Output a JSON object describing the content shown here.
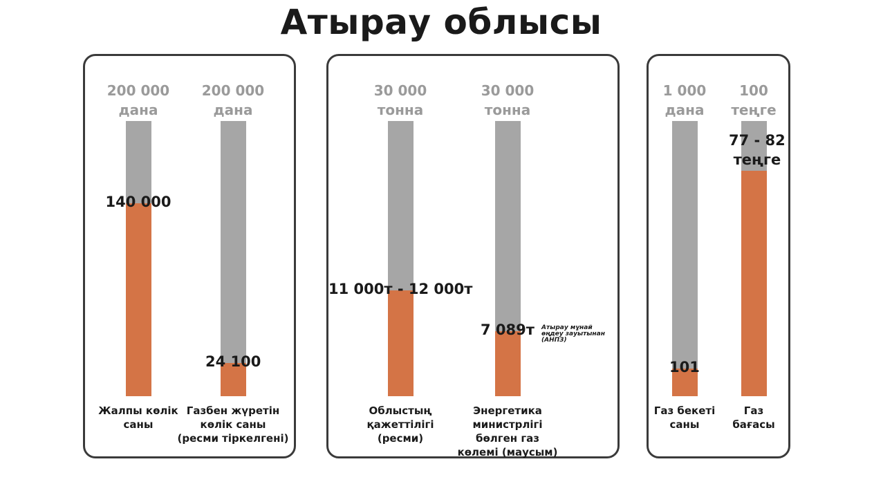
{
  "title": "Атырау облысы",
  "colors": {
    "filled": "#d47446",
    "track": "#a6a6a6",
    "max_text": "#9a9a9a"
  },
  "chart_data": [
    {
      "type": "bar",
      "series": [
        {
          "name": "Жалпы көлік саны",
          "max_top": "200 000",
          "max_unit": "дана",
          "max_value": 200000,
          "value": 140000,
          "value_label": "140 000"
        },
        {
          "name": "Газбен жүретін көлік саны (ресми тіркелгені)",
          "max_top": "200 000",
          "max_unit": "дана",
          "max_value": 200000,
          "value": 24100,
          "value_label": "24 100"
        }
      ]
    },
    {
      "type": "bar",
      "series": [
        {
          "name": "Облыстың қажеттілігі (ресми)",
          "max_top": "30 000",
          "max_unit": "тонна",
          "max_value": 30000,
          "value": 11500,
          "value_label": "11 000т - 12 000т"
        },
        {
          "name": "Энергетика министрлігі бөлген газ көлемі (маусым)",
          "max_top": "30 000",
          "max_unit": "тонна",
          "max_value": 30000,
          "value": 7089,
          "value_label": "7 089т",
          "note": "Атырау мұнай өңдеу зауытынан (АНПЗ)"
        }
      ]
    },
    {
      "type": "bar",
      "series": [
        {
          "name": "Газ бекеті саны",
          "max_top": "1 000",
          "max_unit": "дана",
          "max_value": 1000,
          "value": 101,
          "value_label": "101"
        },
        {
          "name": "Газ бағасы",
          "max_top": "100",
          "max_unit": "теңге",
          "max_value": 100,
          "value": 82,
          "value_label": "77 - 82 теңге"
        }
      ]
    }
  ],
  "labels": {
    "p0b0": "Жалпы көлік\nсаны",
    "p0b1": "Газбен жүретін\nкөлік саны\n(ресми тіркелгені)",
    "p1b0": "Облыстың\nқажеттілігі\n(ресми)",
    "p1b1": "Энергетика\nминистрлігі\nбөлген газ\nкөлемі (маусым)",
    "p2b0": "Газ бекеті\nсаны",
    "p2b1": "Газ\nбағасы",
    "p1b1_note": "Атырау мұнай\nөңдеу зауытынан\n(АНПЗ)",
    "p2b1_value": "77 - 82\nтеңге"
  }
}
